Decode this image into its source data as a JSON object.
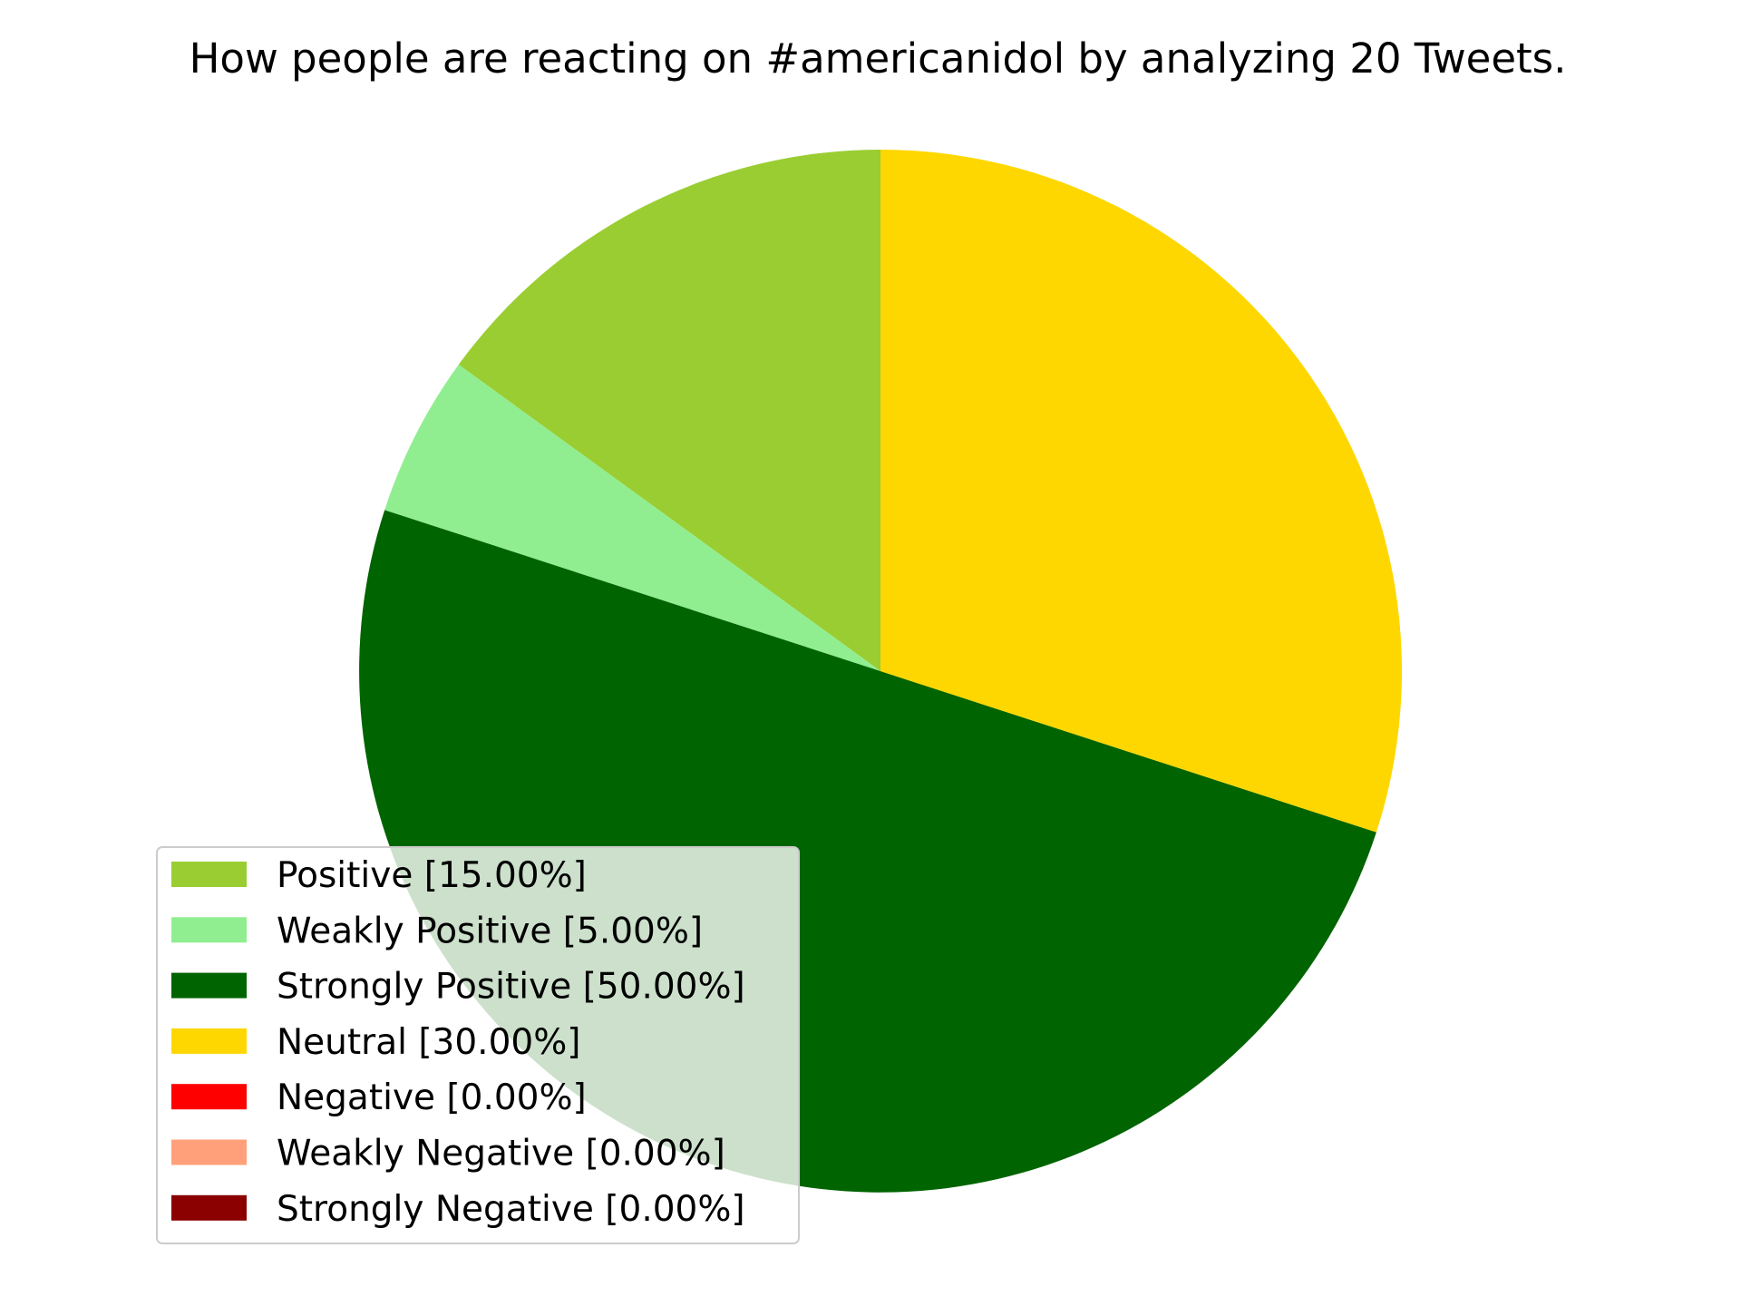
{
  "chart_data": {
    "type": "pie",
    "title": "How people are reacting on #americanidol by analyzing 20 Tweets.",
    "start_angle_deg": 90,
    "direction": "counterclockwise",
    "legend_position": "lower-left",
    "slices": [
      {
        "label": "Positive [15.00%]",
        "value": 15,
        "color": "#9acd32"
      },
      {
        "label": "Weakly Positive [5.00%]",
        "value": 5,
        "color": "#90ee90"
      },
      {
        "label": "Strongly Positive [50.00%]",
        "value": 50,
        "color": "#006400"
      },
      {
        "label": "Neutral [30.00%]",
        "value": 30,
        "color": "#ffd700"
      },
      {
        "label": "Negative [0.00%]",
        "value": 0,
        "color": "#ff0000"
      },
      {
        "label": "Weakly Negative [0.00%]",
        "value": 0,
        "color": "#ffa07a"
      },
      {
        "label": "Strongly Negative [0.00%]",
        "value": 0,
        "color": "#8b0000"
      }
    ]
  }
}
